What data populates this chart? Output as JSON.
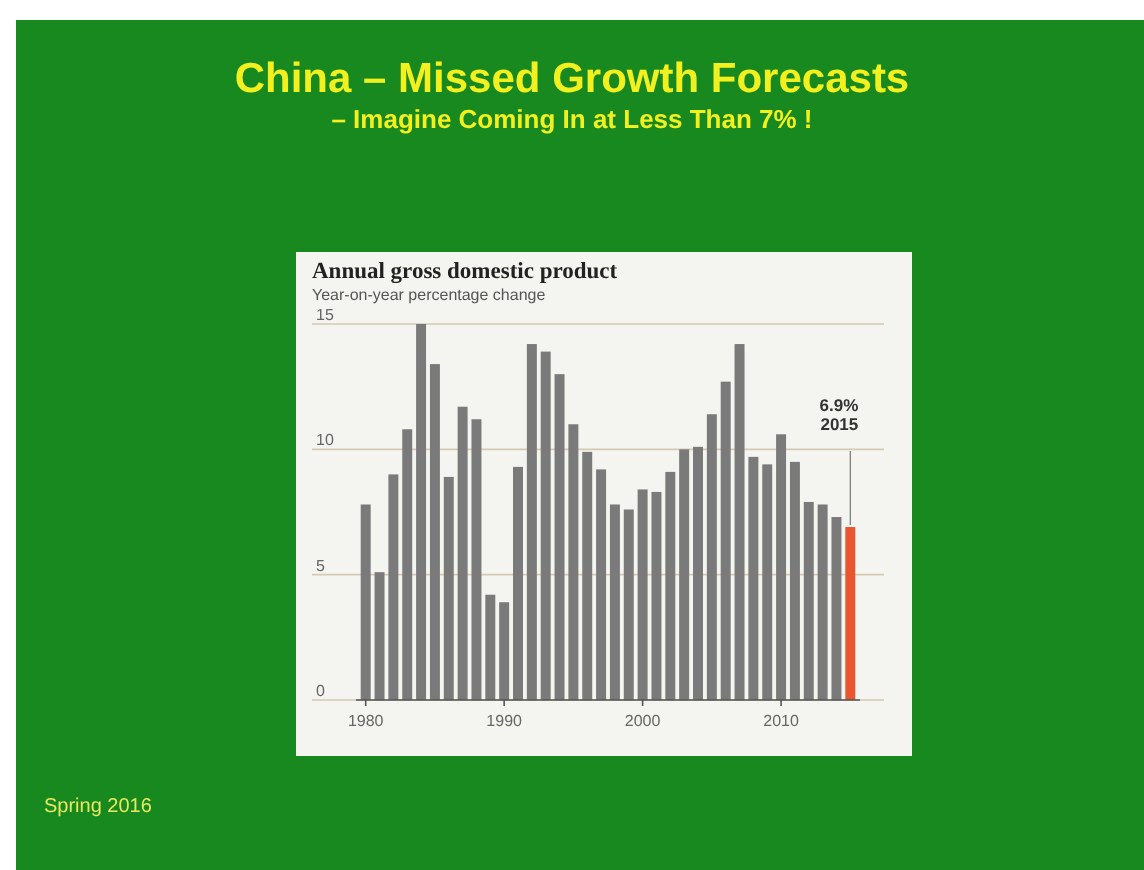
{
  "chart_data": {
    "type": "bar",
    "title": "China – Missed Growth Forecasts",
    "subtitle": "– Imagine Coming In at Less Than 7% !",
    "ylabel": "Year-on-year percentage change",
    "x": [
      1980,
      1981,
      1982,
      1983,
      1984,
      1985,
      1986,
      1987,
      1988,
      1989,
      1990,
      1991,
      1992,
      1993,
      1994,
      1995,
      1996,
      1997,
      1998,
      1999,
      2000,
      2001,
      2002,
      2003,
      2004,
      2005,
      2006,
      2007,
      2008,
      2009,
      2010,
      2011,
      2012,
      2013,
      2014,
      2015
    ],
    "values": [
      7.8,
      5.1,
      9.0,
      10.8,
      15.0,
      13.4,
      8.9,
      11.7,
      11.2,
      4.2,
      3.9,
      9.3,
      14.2,
      13.9,
      13.0,
      11.0,
      9.9,
      9.2,
      7.8,
      7.6,
      8.4,
      8.3,
      9.1,
      10.0,
      10.1,
      11.4,
      12.7,
      14.2,
      9.7,
      9.4,
      10.6,
      9.5,
      7.9,
      7.8,
      7.3,
      6.9
    ],
    "colors": [
      "#7a7a7a",
      "#7a7a7a",
      "#7a7a7a",
      "#7a7a7a",
      "#7a7a7a",
      "#7a7a7a",
      "#7a7a7a",
      "#7a7a7a",
      "#7a7a7a",
      "#7a7a7a",
      "#7a7a7a",
      "#7a7a7a",
      "#7a7a7a",
      "#7a7a7a",
      "#7a7a7a",
      "#7a7a7a",
      "#7a7a7a",
      "#7a7a7a",
      "#7a7a7a",
      "#7a7a7a",
      "#7a7a7a",
      "#7a7a7a",
      "#7a7a7a",
      "#7a7a7a",
      "#7a7a7a",
      "#7a7a7a",
      "#7a7a7a",
      "#7a7a7a",
      "#7a7a7a",
      "#7a7a7a",
      "#7a7a7a",
      "#7a7a7a",
      "#7a7a7a",
      "#7a7a7a",
      "#7a7a7a",
      "#e8552f"
    ],
    "xlim": [
      1979.3,
      2015.7
    ],
    "xticks": [
      1980,
      1990,
      2000,
      2010
    ],
    "ylim": [
      0,
      15
    ],
    "yticks": [
      0,
      5,
      10,
      15
    ],
    "grid": "y",
    "annotations": [
      "Annual gross domestic product",
      "Spring 2016",
      {
        "text": "6.9%\n2015",
        "x": 2015,
        "y": 6.9
      }
    ]
  }
}
